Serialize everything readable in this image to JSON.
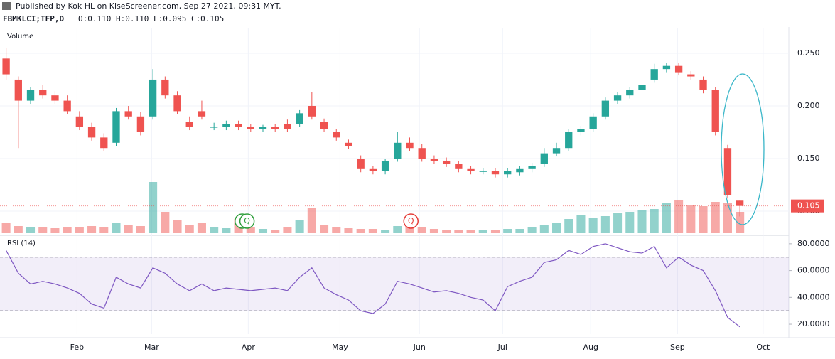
{
  "header": {
    "published": "Published by Kok HL on KlseScreener.com, Sep 27 2021, 09:31 MYT.",
    "symbol": "FBMKLCI;TFP,D",
    "ohlc": "O:0.110 H:0.110 L:0.095 C:0.105"
  },
  "chart_data": {
    "type": "candlestick",
    "volume_label": "Volume",
    "rsi_label": "RSI (14)",
    "xlim": [
      -0.5,
      64
    ],
    "xticks": [
      {
        "value": 5.8,
        "label": "Feb"
      },
      {
        "value": 11.9,
        "label": "Mar"
      },
      {
        "value": 19.8,
        "label": "Apr"
      },
      {
        "value": 27.3,
        "label": "May"
      },
      {
        "value": 33.8,
        "label": "Jun"
      },
      {
        "value": 40.6,
        "label": "Jul"
      },
      {
        "value": 47.8,
        "label": "Aug"
      },
      {
        "value": 54.9,
        "label": "Sep"
      },
      {
        "value": 61.9,
        "label": "Oct"
      }
    ],
    "ylim": [
      0.0791,
      0.2736
    ],
    "yticks": [
      {
        "value": 0.1,
        "label": "0.100"
      },
      {
        "value": 0.15,
        "label": "0.150"
      },
      {
        "value": 0.2,
        "label": "0.200"
      },
      {
        "value": 0.25,
        "label": "0.250"
      }
    ],
    "up_color": "#26a69a",
    "down_color": "#ef5350",
    "open": [
      0.245,
      0.225,
      0.205,
      0.215,
      0.21,
      0.205,
      0.19,
      0.18,
      0.17,
      0.165,
      0.195,
      0.19,
      0.19,
      0.225,
      0.21,
      0.185,
      0.195,
      0.18,
      0.18,
      0.183,
      0.18,
      0.178,
      0.18,
      0.183,
      0.183,
      0.2,
      0.185,
      0.175,
      0.165,
      0.15,
      0.14,
      0.138,
      0.15,
      0.165,
      0.16,
      0.15,
      0.148,
      0.145,
      0.14,
      0.138,
      0.138,
      0.135,
      0.137,
      0.14,
      0.145,
      0.155,
      0.16,
      0.175,
      0.178,
      0.19,
      0.205,
      0.21,
      0.215,
      0.225,
      0.235,
      0.238,
      0.23,
      0.225,
      0.215,
      0.16,
      0.11
    ],
    "high": [
      0.255,
      0.228,
      0.218,
      0.22,
      0.214,
      0.21,
      0.195,
      0.184,
      0.174,
      0.198,
      0.2,
      0.194,
      0.235,
      0.228,
      0.214,
      0.19,
      0.205,
      0.184,
      0.186,
      0.186,
      0.183,
      0.182,
      0.183,
      0.187,
      0.196,
      0.213,
      0.188,
      0.178,
      0.168,
      0.153,
      0.143,
      0.15,
      0.175,
      0.17,
      0.164,
      0.153,
      0.151,
      0.148,
      0.143,
      0.141,
      0.141,
      0.141,
      0.143,
      0.146,
      0.16,
      0.165,
      0.178,
      0.181,
      0.193,
      0.208,
      0.213,
      0.218,
      0.223,
      0.24,
      0.241,
      0.241,
      0.233,
      0.228,
      0.218,
      0.163,
      0.11
    ],
    "low": [
      0.225,
      0.16,
      0.202,
      0.207,
      0.202,
      0.192,
      0.177,
      0.167,
      0.157,
      0.162,
      0.187,
      0.172,
      0.187,
      0.207,
      0.192,
      0.177,
      0.187,
      0.177,
      0.177,
      0.177,
      0.175,
      0.175,
      0.175,
      0.175,
      0.18,
      0.187,
      0.175,
      0.167,
      0.159,
      0.137,
      0.135,
      0.135,
      0.147,
      0.157,
      0.147,
      0.145,
      0.142,
      0.137,
      0.135,
      0.135,
      0.132,
      0.132,
      0.134,
      0.137,
      0.142,
      0.152,
      0.157,
      0.172,
      0.175,
      0.187,
      0.202,
      0.207,
      0.212,
      0.222,
      0.232,
      0.229,
      0.225,
      0.212,
      0.172,
      0.112,
      0.095
    ],
    "close": [
      0.23,
      0.205,
      0.215,
      0.21,
      0.205,
      0.195,
      0.18,
      0.17,
      0.16,
      0.195,
      0.19,
      0.175,
      0.225,
      0.21,
      0.195,
      0.18,
      0.19,
      0.18,
      0.183,
      0.18,
      0.178,
      0.18,
      0.178,
      0.178,
      0.193,
      0.19,
      0.178,
      0.17,
      0.162,
      0.14,
      0.138,
      0.148,
      0.165,
      0.16,
      0.15,
      0.148,
      0.145,
      0.14,
      0.138,
      0.138,
      0.135,
      0.138,
      0.14,
      0.143,
      0.155,
      0.16,
      0.175,
      0.178,
      0.19,
      0.205,
      0.21,
      0.215,
      0.22,
      0.235,
      0.238,
      0.232,
      0.228,
      0.215,
      0.175,
      0.115,
      0.105
    ],
    "volume": [
      14,
      10,
      9,
      8,
      7,
      8,
      9,
      10,
      8,
      14,
      12,
      10,
      72,
      30,
      18,
      12,
      14,
      8,
      7,
      20,
      9,
      6,
      5,
      8,
      18,
      36,
      12,
      8,
      7,
      6,
      6,
      5,
      10,
      12,
      8,
      6,
      5,
      5,
      5,
      4,
      5,
      6,
      6,
      8,
      12,
      14,
      20,
      25,
      22,
      24,
      28,
      30,
      32,
      34,
      42,
      46,
      40,
      38,
      44,
      42,
      30
    ],
    "rsi_ylim": [
      12.6,
      84.7
    ],
    "rsi_yticks": [
      {
        "value": 20,
        "label": "20.0000"
      },
      {
        "value": 40,
        "label": "40.0000"
      },
      {
        "value": 60,
        "label": "60.0000"
      },
      {
        "value": 80,
        "label": "80.0000"
      }
    ],
    "rsi_band": [
      30,
      70
    ],
    "rsi_color": "#7e57c2",
    "rsi": [
      75,
      58,
      50,
      52,
      50,
      47,
      43,
      35,
      32,
      55,
      50,
      47,
      62,
      58,
      50,
      45,
      50,
      45,
      47,
      46,
      45,
      46,
      47,
      45,
      55,
      62,
      47,
      42,
      38,
      30,
      28,
      35,
      52,
      50,
      47,
      44,
      45,
      43,
      40,
      38,
      30,
      48,
      52,
      55,
      66,
      68,
      75,
      72,
      78,
      80,
      77,
      74,
      73,
      78,
      62,
      70,
      64,
      60,
      45,
      25,
      18
    ],
    "last_price": {
      "value": 0.105,
      "label": "0.105"
    },
    "markers": [
      {
        "x": 19.3,
        "label": "Q",
        "color": "#2e9e3a"
      },
      {
        "x": 19.7,
        "label": "Q",
        "color": "#2e9e3a"
      },
      {
        "x": 33.1,
        "label": "Q",
        "color": "#e53935"
      }
    ]
  }
}
